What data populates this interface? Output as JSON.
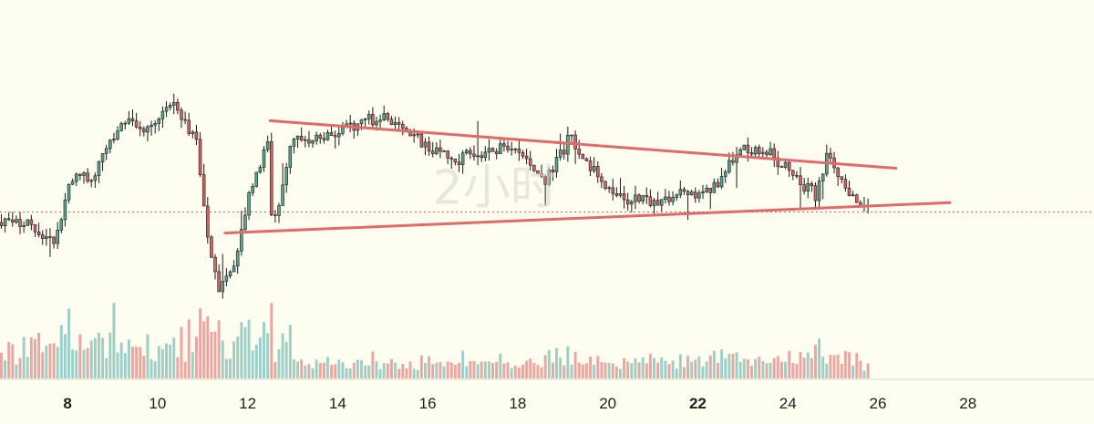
{
  "chart_data": {
    "type": "candlestick",
    "title": "",
    "watermark": "2小时",
    "x_axis": {
      "type": "day-of-month",
      "range": [
        6.5,
        30.8
      ],
      "ticks": [
        {
          "label": "8",
          "value": 8,
          "bold": true
        },
        {
          "label": "10",
          "value": 10,
          "bold": false
        },
        {
          "label": "12",
          "value": 12,
          "bold": false
        },
        {
          "label": "14",
          "value": 14,
          "bold": false
        },
        {
          "label": "16",
          "value": 16,
          "bold": false
        },
        {
          "label": "18",
          "value": 18,
          "bold": false
        },
        {
          "label": "20",
          "value": 20,
          "bold": false
        },
        {
          "label": "22",
          "value": 22,
          "bold": true
        },
        {
          "label": "24",
          "value": 24,
          "bold": false
        },
        {
          "label": "26",
          "value": 26,
          "bold": false
        },
        {
          "label": "28",
          "value": 28,
          "bold": false
        }
      ]
    },
    "y_axis": {
      "shown": false,
      "price_range": [
        0,
        100
      ]
    },
    "interval_hours": 2,
    "current_price": 44,
    "price_path": [
      [
        6.5,
        40
      ],
      [
        7.2,
        39
      ],
      [
        7.8,
        33
      ],
      [
        8.2,
        60
      ],
      [
        8.6,
        54
      ],
      [
        9.0,
        72
      ],
      [
        9.4,
        77
      ],
      [
        9.8,
        75
      ],
      [
        10.4,
        85
      ],
      [
        10.9,
        72
      ],
      [
        11.1,
        42
      ],
      [
        11.4,
        14
      ],
      [
        11.7,
        22
      ],
      [
        12.2,
        58
      ],
      [
        12.5,
        70
      ],
      [
        12.6,
        36
      ],
      [
        13.0,
        70
      ],
      [
        13.6,
        72
      ],
      [
        14.3,
        75
      ],
      [
        14.9,
        80
      ],
      [
        15.4,
        77
      ],
      [
        16.0,
        69
      ],
      [
        16.8,
        64
      ],
      [
        17.4,
        68
      ],
      [
        18.0,
        67
      ],
      [
        18.7,
        56
      ],
      [
        19.2,
        72
      ],
      [
        19.8,
        59
      ],
      [
        20.3,
        49
      ],
      [
        21.0,
        48
      ],
      [
        21.8,
        51
      ],
      [
        22.4,
        53
      ],
      [
        23.0,
        69
      ],
      [
        23.6,
        67
      ],
      [
        24.2,
        57
      ],
      [
        24.7,
        50
      ],
      [
        24.9,
        66
      ],
      [
        25.4,
        49
      ],
      [
        25.8,
        45
      ]
    ],
    "volume_spikes": [
      [
        9.0,
        100
      ],
      [
        12.5,
        115
      ],
      [
        8.0,
        85
      ],
      [
        22.7,
        30
      ],
      [
        24.8,
        18
      ]
    ],
    "trendlines": [
      {
        "name": "",
        "from": [
          12.5,
          78.5
        ],
        "to": [
          26.4,
          60.5
        ],
        "color": "#e06b6b"
      },
      {
        "name": "",
        "from": [
          11.5,
          36
        ],
        "to": [
          27.6,
          47.5
        ],
        "color": "#e06b6b"
      }
    ],
    "colors": {
      "up": "#5aa58c",
      "down": "#d26560",
      "wick": "#1a1a1a",
      "trendline": "#e06b6b",
      "price_line": "#c85a50",
      "volume_up": "#9ccfc8",
      "volume_down": "#eaa6a0",
      "background": "#fdfdf0",
      "axis": "#d6d6d0"
    }
  }
}
